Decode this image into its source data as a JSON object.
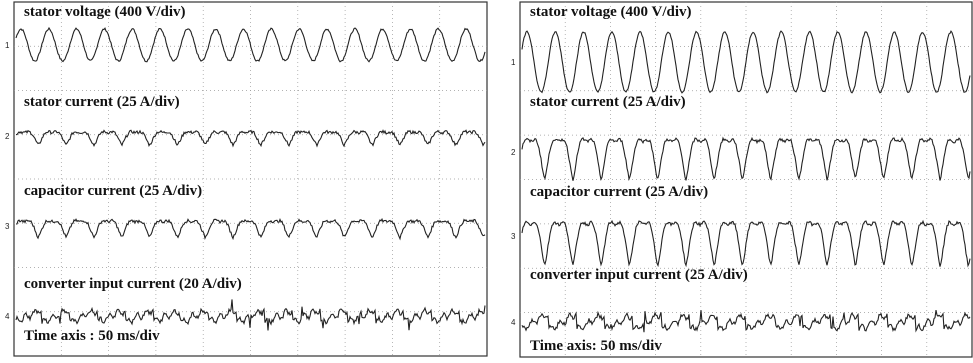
{
  "panels": [
    {
      "traces": [
        {
          "channel": "1",
          "label": "stator voltage (400 V/div)"
        },
        {
          "channel": "2",
          "label": "stator current (25 A/div)"
        },
        {
          "channel": "3",
          "label": "capacitor current (25 A/div)"
        },
        {
          "channel": "4",
          "label": "converter input current (20 A/div)"
        }
      ],
      "time_axis": "Time axis : 50 ms/div"
    },
    {
      "traces": [
        {
          "channel": "1",
          "label": "stator voltage (400 V/div)"
        },
        {
          "channel": "2",
          "label": "stator current (25 A/div)"
        },
        {
          "channel": "3",
          "label": "capacitor current (25 A/div)"
        },
        {
          "channel": "4",
          "label": "converter input current (25 A/div)"
        }
      ],
      "time_axis": "Time axis: 50 ms/div"
    }
  ]
}
